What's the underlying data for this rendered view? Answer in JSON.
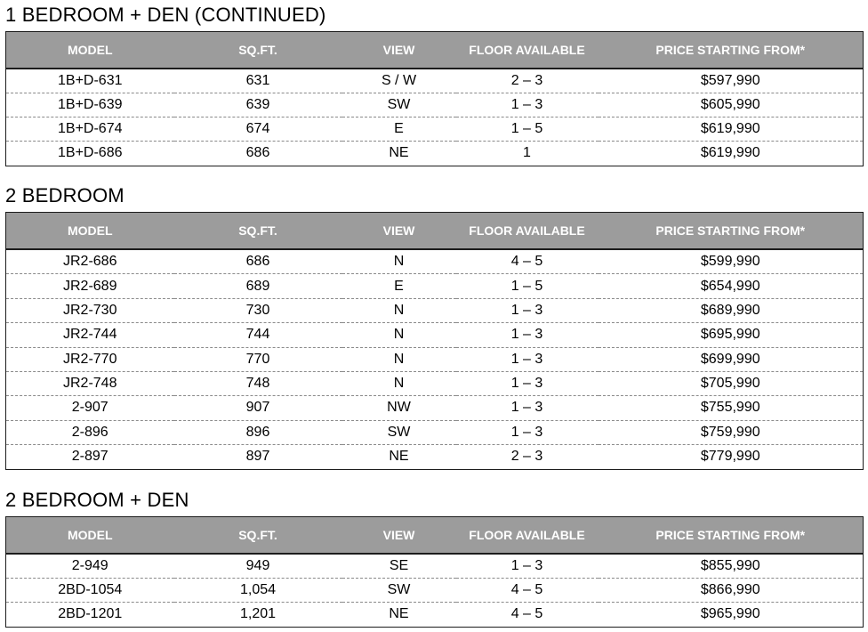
{
  "columns": [
    "MODEL",
    "SQ.FT.",
    "VIEW",
    "FLOOR AVAILABLE",
    "PRICE STARTING FROM*"
  ],
  "sections": [
    {
      "title": "1 BEDROOM + DEN (CONTINUED)",
      "rows": [
        [
          "1B+D-631",
          "631",
          "S / W",
          "2 – 3",
          "$597,990"
        ],
        [
          "1B+D-639",
          "639",
          "SW",
          "1 – 3",
          "$605,990"
        ],
        [
          "1B+D-674",
          "674",
          "E",
          "1 – 5",
          "$619,990"
        ],
        [
          "1B+D-686",
          "686",
          "NE",
          "1",
          "$619,990"
        ]
      ]
    },
    {
      "title": "2 BEDROOM",
      "rows": [
        [
          "JR2-686",
          "686",
          "N",
          "4 – 5",
          "$599,990"
        ],
        [
          "JR2-689",
          "689",
          "E",
          "1 – 5",
          "$654,990"
        ],
        [
          "JR2-730",
          "730",
          "N",
          "1 – 3",
          "$689,990"
        ],
        [
          "JR2-744",
          "744",
          "N",
          "1 – 3",
          "$695,990"
        ],
        [
          "JR2-770",
          "770",
          "N",
          "1 – 3",
          "$699,990"
        ],
        [
          "JR2-748",
          "748",
          "N",
          "1 – 3",
          "$705,990"
        ],
        [
          "2-907",
          "907",
          "NW",
          "1 – 3",
          "$755,990"
        ],
        [
          "2-896",
          "896",
          "SW",
          "1 – 3",
          "$759,990"
        ],
        [
          "2-897",
          "897",
          "NE",
          "2 – 3",
          "$779,990"
        ]
      ]
    },
    {
      "title": "2 BEDROOM + DEN",
      "rows": [
        [
          "2-949",
          "949",
          "SE",
          "1 – 3",
          "$855,990"
        ],
        [
          "2BD-1054",
          "1,054",
          "SW",
          "4 – 5",
          "$866,990"
        ],
        [
          "2BD-1201",
          "1,201",
          "NE",
          "4 – 5",
          "$965,990"
        ]
      ]
    }
  ]
}
